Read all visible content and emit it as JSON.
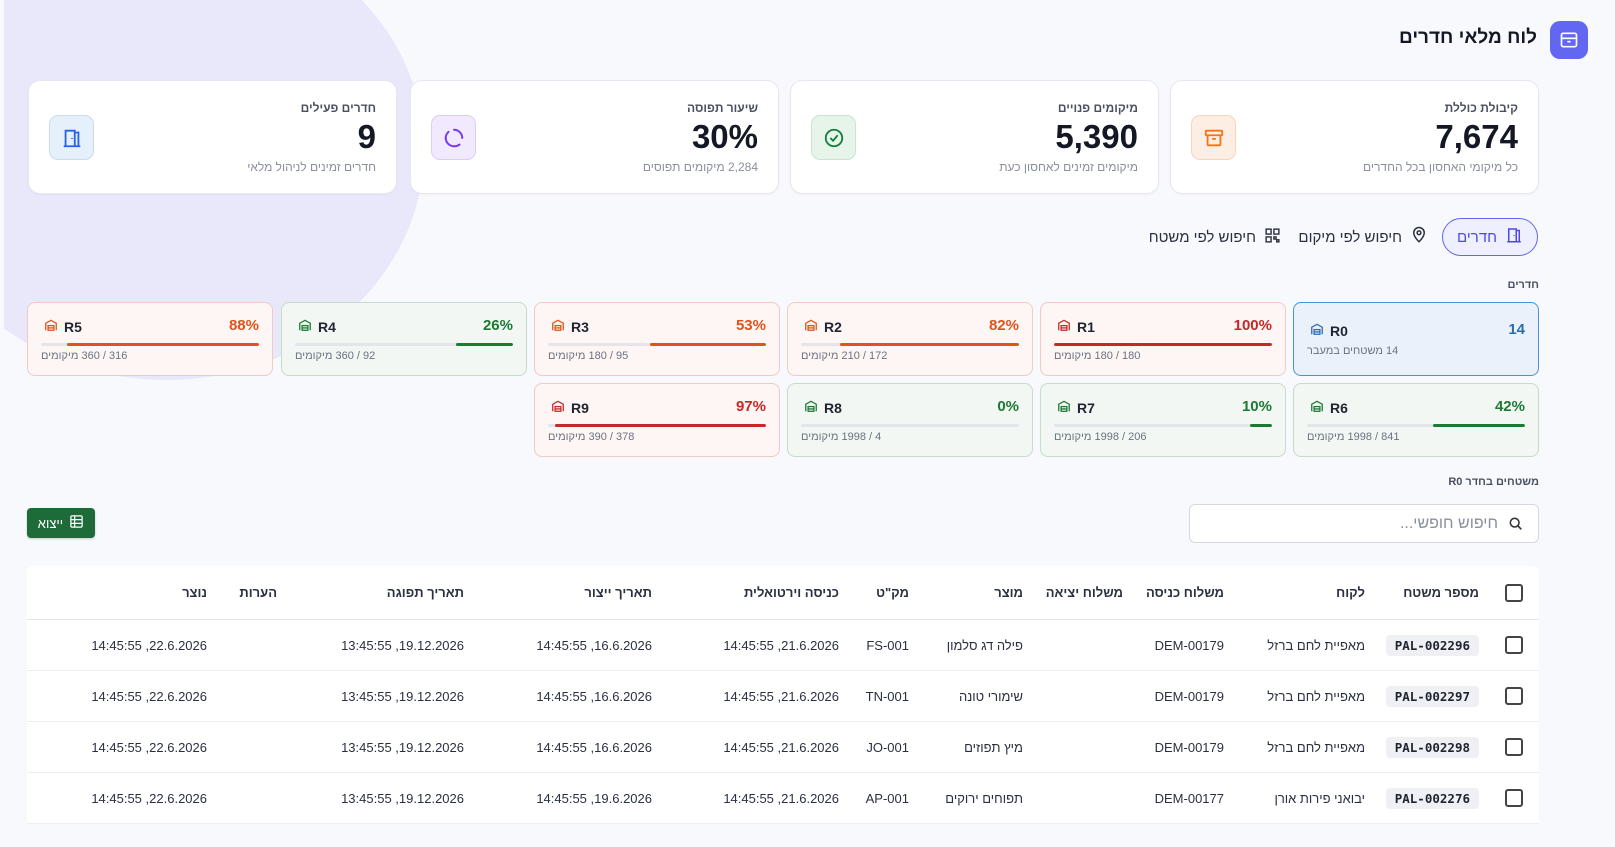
{
  "header": {
    "title": "לוח מלאי חדרים"
  },
  "stats": [
    {
      "label": "קיבולת כוללת",
      "value": "7,674",
      "sub": "כל מיקומי האחסון בכל החדרים",
      "icon": "archive-icon",
      "color": "#f97316"
    },
    {
      "label": "מיקומים פנויים",
      "value": "5,390",
      "sub": "מיקומים זמינים לאחסון כעת",
      "icon": "check-circle-icon",
      "color": "#16a34a"
    },
    {
      "label": "שיעור תפוסה",
      "value": "30%",
      "sub": "2,284 מיקומים תפוסים",
      "icon": "spinner-icon",
      "color": "#7c3aed"
    },
    {
      "label": "חדרים פעילים",
      "value": "9",
      "sub": "חדרים זמינים לניהול מלאי",
      "icon": "door-icon",
      "color": "#2563eb"
    }
  ],
  "tabs": [
    {
      "label": "חדרים",
      "icon": "door-icon",
      "active": true
    },
    {
      "label": "חיפוש לפי מיקום",
      "icon": "map-pin-icon",
      "active": false
    },
    {
      "label": "חיפוש לפי משטח",
      "icon": "qr-code-icon",
      "active": false
    }
  ],
  "rooms_label": "חדרים",
  "rooms": [
    {
      "name": "R0",
      "pct": "14",
      "count": "14 משטחים במעבר",
      "fill": 0,
      "color": "#2b6cb0",
      "selected": true
    },
    {
      "name": "R1",
      "pct": "100%",
      "count": "180 / 180 מיקומים",
      "fill": 1.0,
      "color": "#c62828"
    },
    {
      "name": "R2",
      "pct": "82%",
      "count": "172 / 210 מיקומים",
      "fill": 0.82,
      "color": "#e0531c"
    },
    {
      "name": "R3",
      "pct": "53%",
      "count": "95 / 180 מיקומים",
      "fill": 0.53,
      "color": "#e0531c"
    },
    {
      "name": "R4",
      "pct": "26%",
      "count": "92 / 360 מיקומים",
      "fill": 0.26,
      "color": "#1b7a34"
    },
    {
      "name": "R5",
      "pct": "88%",
      "count": "316 / 360 מיקומים",
      "fill": 0.88,
      "color": "#e0531c"
    },
    {
      "name": "R6",
      "pct": "42%",
      "count": "841 / 1998 מיקומים",
      "fill": 0.42,
      "color": "#1b7a34"
    },
    {
      "name": "R7",
      "pct": "10%",
      "count": "206 / 1998 מיקומים",
      "fill": 0.1,
      "color": "#1b7a34"
    },
    {
      "name": "R8",
      "pct": "0%",
      "count": "4 / 1998 מיקומים",
      "fill": 0.0,
      "color": "#1b7a34"
    },
    {
      "name": "R9",
      "pct": "97%",
      "count": "378 / 390 מיקומים",
      "fill": 0.97,
      "color": "#c62828"
    }
  ],
  "pallets_label": "משטחים בחדר R0",
  "search": {
    "placeholder": "חיפוש חופשי..."
  },
  "export_label": "ייצוא",
  "table": {
    "headers": {
      "pallet": "מספר משטח",
      "customer": "לקוח",
      "in_ship": "משלוח כניסה",
      "out_ship": "משלוח יציאה",
      "product": "מוצר",
      "sku": "מק\"ט",
      "virtual_in": "כניסה וירטואלית",
      "prod_date": "תאריך ייצור",
      "exp_date": "תאריך תפוגה",
      "notes": "הערות",
      "created": "נוצר"
    },
    "rows": [
      {
        "pallet": "PAL-002296",
        "customer": "מאפיית לחם ברזל",
        "in_ship": "DEM-00179",
        "out_ship": "",
        "product": "פילה דג סלמון",
        "sku": "FS-001",
        "virtual_in": "21.6.2026, 14:45:55",
        "prod_date": "16.6.2026, 14:45:55",
        "exp_date": "19.12.2026, 13:45:55",
        "notes": "",
        "created": "22.6.2026, 14:45:55"
      },
      {
        "pallet": "PAL-002297",
        "customer": "מאפיית לחם ברזל",
        "in_ship": "DEM-00179",
        "out_ship": "",
        "product": "שימורי טונה",
        "sku": "TN-001",
        "virtual_in": "21.6.2026, 14:45:55",
        "prod_date": "16.6.2026, 14:45:55",
        "exp_date": "19.12.2026, 13:45:55",
        "notes": "",
        "created": "22.6.2026, 14:45:55"
      },
      {
        "pallet": "PAL-002298",
        "customer": "מאפיית לחם ברזל",
        "in_ship": "DEM-00179",
        "out_ship": "",
        "product": "מיץ תפוזים",
        "sku": "JO-001",
        "virtual_in": "21.6.2026, 14:45:55",
        "prod_date": "16.6.2026, 14:45:55",
        "exp_date": "19.12.2026, 13:45:55",
        "notes": "",
        "created": "22.6.2026, 14:45:55"
      },
      {
        "pallet": "PAL-002276",
        "customer": "יבואני פירות אורן",
        "in_ship": "DEM-00177",
        "out_ship": "",
        "product": "תפוחים ירוקים",
        "sku": "AP-001",
        "virtual_in": "21.6.2026, 14:45:55",
        "prod_date": "19.6.2026, 14:45:55",
        "exp_date": "19.12.2026, 13:45:55",
        "notes": "",
        "created": "22.6.2026, 14:45:55"
      }
    ]
  }
}
